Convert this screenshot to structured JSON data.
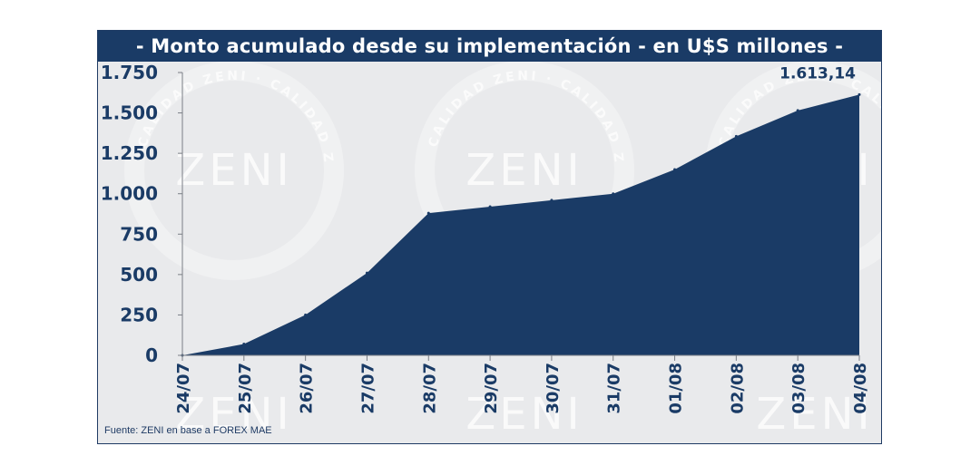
{
  "chart_data": {
    "type": "area",
    "title": "- Monto acumulado desde su implementación - en U$S millones -",
    "xlabel": "",
    "ylabel": "",
    "categories": [
      "24/07",
      "25/07",
      "26/07",
      "27/07",
      "28/07",
      "29/07",
      "30/07",
      "31/07",
      "01/08",
      "02/08",
      "03/08",
      "04/08"
    ],
    "series": [
      {
        "values": [
          0,
          70,
          250,
          510,
          880,
          920,
          960,
          1000,
          1150,
          1355,
          1515,
          1613.14
        ],
        "color": "#1a3b66"
      }
    ],
    "ylim": [
      0,
      1750
    ],
    "yticks": [
      0,
      250,
      500,
      750,
      1000,
      1250,
      1500,
      1750
    ],
    "ytick_labels": [
      "0",
      "250",
      "500",
      "750",
      "1.000",
      "1.250",
      "1.500",
      "1.750"
    ],
    "last_value_label": "1.613,14",
    "grid": false,
    "legend": "none"
  },
  "watermark": {
    "brand": "ZENI",
    "ring_text": "CALIDAD ZENI"
  },
  "source": "Fuente: ZENI en base a FOREX MAE"
}
